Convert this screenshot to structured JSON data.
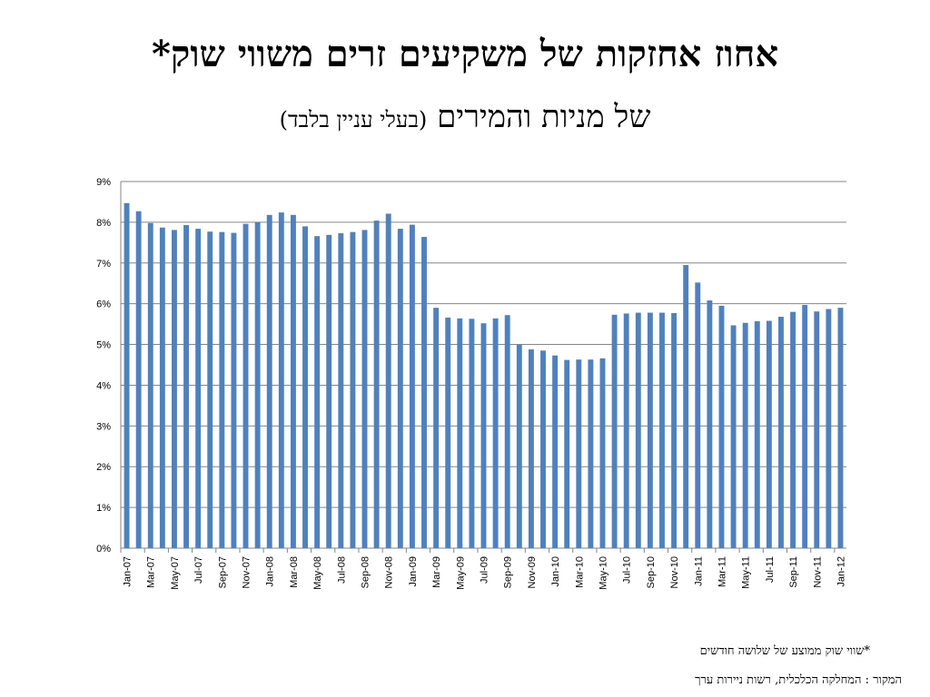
{
  "title": "אחוז אחזקות של משקיעים זרים משווי שוק*",
  "subtitle_main": "של מניות והמירים",
  "subtitle_paren": "(בעלי עניין בלבד)",
  "footnote": "*שווי שוק ממוצע של שלושה חודשים",
  "source": "המקור : המחלקה הכלכלית, רשות ניירות ערך",
  "colors": {
    "bar": "#4f81bd",
    "grid": "#868686",
    "axis": "#868686"
  },
  "chart_data": {
    "type": "bar",
    "title": "",
    "xlabel": "",
    "ylabel": "",
    "ylim": [
      0,
      9
    ],
    "y_unit": "%",
    "yticks": [
      "0%",
      "1%",
      "2%",
      "3%",
      "4%",
      "5%",
      "6%",
      "7%",
      "8%",
      "9%"
    ],
    "grid": true,
    "legend": "none",
    "categories": [
      "Jan-07",
      "Feb-07",
      "Mar-07",
      "Apr-07",
      "May-07",
      "Jun-07",
      "Jul-07",
      "Aug-07",
      "Sep-07",
      "Oct-07",
      "Nov-07",
      "Dec-07",
      "Jan-08",
      "Feb-08",
      "Mar-08",
      "Apr-08",
      "May-08",
      "Jun-08",
      "Jul-08",
      "Aug-08",
      "Sep-08",
      "Oct-08",
      "Nov-08",
      "Dec-08",
      "Jan-09",
      "Feb-09",
      "Mar-09",
      "Apr-09",
      "May-09",
      "Jun-09",
      "Jul-09",
      "Aug-09",
      "Sep-09",
      "Oct-09",
      "Nov-09",
      "Dec-09",
      "Jan-10",
      "Feb-10",
      "Mar-10",
      "Apr-10",
      "May-10",
      "Jun-10",
      "Jul-10",
      "Aug-10",
      "Sep-10",
      "Oct-10",
      "Nov-10",
      "Dec-10",
      "Jan-11",
      "Feb-11",
      "Mar-11",
      "Apr-11",
      "May-11",
      "Jun-11",
      "Jul-11",
      "Aug-11",
      "Sep-11",
      "Oct-11",
      "Nov-11",
      "Dec-11",
      "Jan-12"
    ],
    "tick_labels": [
      "Jan-07",
      "Mar-07",
      "May-07",
      "Jul-07",
      "Sep-07",
      "Nov-07",
      "Jan-08",
      "Mar-08",
      "May-08",
      "Jul-08",
      "Sep-08",
      "Nov-08",
      "Jan-09",
      "Mar-09",
      "May-09",
      "Jul-09",
      "Sep-09",
      "Nov-09",
      "Jan-10",
      "Mar-10",
      "May-10",
      "Jul-10",
      "Sep-10",
      "Nov-10",
      "Jan-11",
      "Mar-11",
      "May-11",
      "Jul-11",
      "Sep-11",
      "Nov-11",
      "Jan-12"
    ],
    "values": [
      8.47,
      8.27,
      7.98,
      7.87,
      7.81,
      7.93,
      7.84,
      7.77,
      7.76,
      7.74,
      7.96,
      8.0,
      8.18,
      8.24,
      8.18,
      7.9,
      7.66,
      7.69,
      7.73,
      7.76,
      7.81,
      8.04,
      8.21,
      7.84,
      7.94,
      7.64,
      5.9,
      5.66,
      5.64,
      5.63,
      5.52,
      5.64,
      5.72,
      4.99,
      4.88,
      4.85,
      4.73,
      4.62,
      4.63,
      4.63,
      4.66,
      5.73,
      5.76,
      5.78,
      5.78,
      5.78,
      5.77,
      6.95,
      6.52,
      6.08,
      5.95,
      5.47,
      5.53,
      5.57,
      5.58,
      5.68,
      5.8,
      5.97,
      5.81,
      5.87,
      5.9
    ]
  }
}
